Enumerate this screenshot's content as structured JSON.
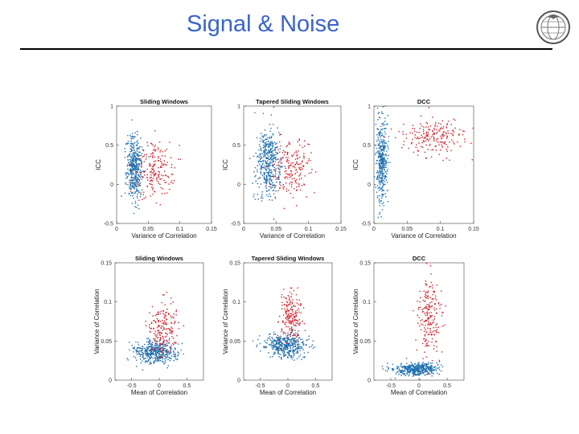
{
  "slide": {
    "title": "Signal & Noise"
  },
  "logo": {
    "icon": "brain-globe-logo-icon"
  },
  "colors": {
    "title": "#3a63c9",
    "series_a": "#1f6fae",
    "series_b": "#d0202a",
    "axis": "#000000"
  },
  "chart_data": [
    {
      "type": "scatter",
      "title": "Sliding Windows",
      "xlabel": "Variance of Correlation",
      "ylabel": "ICC",
      "xlim": [
        0,
        0.15
      ],
      "ylim": [
        -0.5,
        1
      ],
      "xticks": [
        0,
        0.05,
        0.1,
        0.15
      ],
      "xtick_labels": [
        "0",
        "0.05",
        "0.1",
        "0.15"
      ],
      "yticks": [
        -0.5,
        0,
        0.5,
        1
      ],
      "ytick_labels": [
        "-0.5",
        "0",
        "0.5",
        "1"
      ],
      "grid": false,
      "series": [
        {
          "name": "blue",
          "color": "#1f6fae",
          "cluster": {
            "cx": 0.028,
            "cy": 0.22,
            "sx": 0.006,
            "sy": 0.2,
            "n": 420
          }
        },
        {
          "name": "red",
          "color": "#d0202a",
          "cluster": {
            "cx": 0.06,
            "cy": 0.18,
            "sx": 0.016,
            "sy": 0.18,
            "n": 190
          }
        }
      ]
    },
    {
      "type": "scatter",
      "title": "Tapered Sliding Windows",
      "xlabel": "Variance of Correlation",
      "ylabel": "ICC",
      "xlim": [
        0,
        0.15
      ],
      "ylim": [
        -0.5,
        1
      ],
      "xticks": [
        0,
        0.05,
        0.1,
        0.15
      ],
      "xtick_labels": [
        "0",
        "0.05",
        "0.1",
        "0.15"
      ],
      "yticks": [
        -0.5,
        0,
        0.5,
        1
      ],
      "ytick_labels": [
        "-0.5",
        "0",
        "0.5",
        "1"
      ],
      "grid": false,
      "series": [
        {
          "name": "blue",
          "color": "#1f6fae",
          "cluster": {
            "cx": 0.038,
            "cy": 0.28,
            "sx": 0.009,
            "sy": 0.22,
            "n": 420
          }
        },
        {
          "name": "red",
          "color": "#d0202a",
          "cluster": {
            "cx": 0.075,
            "cy": 0.2,
            "sx": 0.016,
            "sy": 0.18,
            "n": 190
          }
        }
      ]
    },
    {
      "type": "scatter",
      "title": "DCC",
      "xlabel": "Variance of Correlation",
      "ylabel": "ICC",
      "xlim": [
        0,
        0.15
      ],
      "ylim": [
        -0.5,
        1
      ],
      "xticks": [
        0,
        0.05,
        0.1,
        0.15
      ],
      "xtick_labels": [
        "0",
        "0.05",
        "0.1",
        "0.15"
      ],
      "yticks": [
        -0.5,
        0,
        0.5,
        1
      ],
      "ytick_labels": [
        "-0.5",
        "0",
        "0.5",
        "1"
      ],
      "grid": false,
      "series": [
        {
          "name": "blue",
          "color": "#1f6fae",
          "cluster": {
            "cx": 0.012,
            "cy": 0.3,
            "sx": 0.004,
            "sy": 0.25,
            "n": 380
          }
        },
        {
          "name": "red",
          "color": "#d0202a",
          "cluster": {
            "cx": 0.09,
            "cy": 0.6,
            "sx": 0.024,
            "sy": 0.13,
            "n": 200
          }
        }
      ]
    },
    {
      "type": "scatter",
      "title": "Sliding Windows",
      "xlabel": "Mean of Correlation",
      "ylabel": "Variance of Correlation",
      "xlim": [
        -0.8,
        0.8
      ],
      "ylim": [
        0,
        0.15
      ],
      "xticks": [
        -0.5,
        0,
        0.5
      ],
      "xtick_labels": [
        "-0.5",
        "0",
        "0.5"
      ],
      "yticks": [
        0,
        0.05,
        0.1,
        0.15
      ],
      "ytick_labels": [
        "0",
        "0.05",
        "0.1",
        "0.15"
      ],
      "grid": false,
      "series": [
        {
          "name": "blue",
          "color": "#1f6fae",
          "cluster": {
            "cx": -0.05,
            "cy": 0.036,
            "sx": 0.2,
            "sy": 0.007,
            "n": 420
          }
        },
        {
          "name": "red",
          "color": "#d0202a",
          "cluster": {
            "cx": 0.08,
            "cy": 0.065,
            "sx": 0.12,
            "sy": 0.017,
            "n": 190
          }
        }
      ]
    },
    {
      "type": "scatter",
      "title": "Tapered Sliding Windows",
      "xlabel": "Mean of Correlation",
      "ylabel": "Variance of Correlation",
      "xlim": [
        -0.8,
        0.8
      ],
      "ylim": [
        0,
        0.15
      ],
      "xticks": [
        -0.5,
        0,
        0.5
      ],
      "xtick_labels": [
        "-0.5",
        "0",
        "0.5"
      ],
      "yticks": [
        0,
        0.05,
        0.1,
        0.15
      ],
      "ytick_labels": [
        "0",
        "0.05",
        "0.1",
        "0.15"
      ],
      "grid": false,
      "series": [
        {
          "name": "blue",
          "color": "#1f6fae",
          "cluster": {
            "cx": -0.05,
            "cy": 0.045,
            "sx": 0.2,
            "sy": 0.008,
            "n": 420
          }
        },
        {
          "name": "red",
          "color": "#d0202a",
          "cluster": {
            "cx": 0.05,
            "cy": 0.083,
            "sx": 0.1,
            "sy": 0.017,
            "n": 190
          }
        }
      ]
    },
    {
      "type": "scatter",
      "title": "DCC",
      "xlabel": "Mean of Correlation",
      "ylabel": "Variance of Correlation",
      "xlim": [
        -0.8,
        0.8
      ],
      "ylim": [
        0,
        0.15
      ],
      "xticks": [
        -0.5,
        0,
        0.5
      ],
      "xtick_labels": [
        "-0.5",
        "0",
        "0.5"
      ],
      "yticks": [
        0,
        0.05,
        0.1,
        0.15
      ],
      "ytick_labels": [
        "0",
        "0.05",
        "0.1",
        "0.15"
      ],
      "grid": false,
      "series": [
        {
          "name": "blue",
          "color": "#1f6fae",
          "cluster": {
            "cx": -0.05,
            "cy": 0.014,
            "sx": 0.2,
            "sy": 0.004,
            "n": 420
          }
        },
        {
          "name": "red",
          "color": "#d0202a",
          "cluster": {
            "cx": 0.18,
            "cy": 0.085,
            "sx": 0.1,
            "sy": 0.025,
            "n": 200
          }
        }
      ]
    }
  ]
}
